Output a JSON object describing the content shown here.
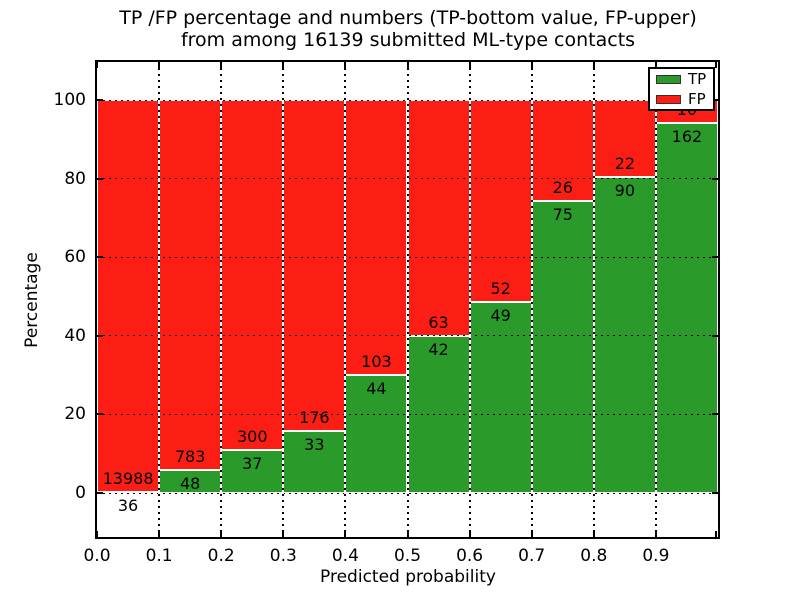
{
  "figure": {
    "title_line1": "TP /FP percentage and numbers (TP-bottom value, FP-upper)",
    "title_line2": "from among 16139 submitted ML-type contacts",
    "xlabel": "Predicted probability",
    "ylabel": "Percentage"
  },
  "chart_data": {
    "type": "bar",
    "stacked": true,
    "title": "TP /FP percentage and numbers (TP-bottom value, FP-upper)\nfrom among 16139 submitted ML-type contacts",
    "xlabel": "Predicted probability",
    "ylabel": "Percentage",
    "total_contacts": 16139,
    "x_tick_labels": [
      "0.0",
      "0.1",
      "0.2",
      "0.3",
      "0.4",
      "0.5",
      "0.6",
      "0.7",
      "0.8",
      "0.9"
    ],
    "y_tick_labels": [
      "0",
      "20",
      "40",
      "60",
      "80",
      "100"
    ],
    "y_ticks": [
      0,
      20,
      40,
      60,
      80,
      100
    ],
    "xlim": [
      0.0,
      1.0
    ],
    "bin_edges": [
      0.0,
      0.1,
      0.2,
      0.3,
      0.4,
      0.5,
      0.6,
      0.7,
      0.8,
      0.9,
      1.0
    ],
    "grid": true,
    "grid_style": "dotted",
    "legend_position": "upper right",
    "series": [
      {
        "name": "TP",
        "color": "#2a9b2a",
        "counts": [
          36,
          48,
          37,
          33,
          44,
          42,
          49,
          75,
          90,
          162
        ]
      },
      {
        "name": "FP",
        "color": "#fc1e14",
        "counts": [
          13988,
          783,
          300,
          176,
          103,
          63,
          52,
          26,
          22,
          10
        ]
      }
    ],
    "tp_percentages": [
      0.26,
      5.78,
      10.98,
      15.79,
      29.93,
      40.0,
      48.51,
      74.26,
      80.36,
      94.19
    ],
    "bar_labels_note": "TP count printed below segment boundary, FP count printed above it"
  }
}
